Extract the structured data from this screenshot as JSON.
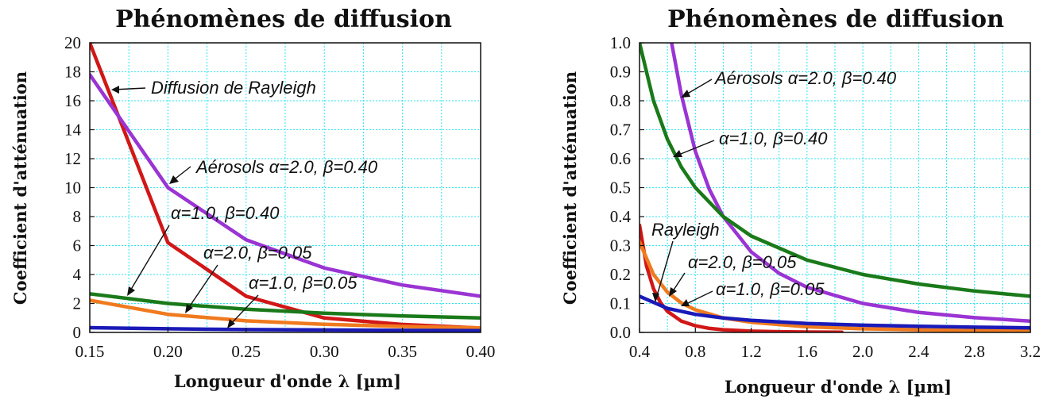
{
  "chart_data": [
    {
      "type": "line",
      "title": "Phénomènes de diffusion",
      "xlabel": "Longueur d'onde λ [µm]",
      "ylabel": "Coefficient d'atténuation",
      "xlim": [
        0.15,
        0.4
      ],
      "ylim": [
        0,
        20
      ],
      "xticks": [
        0.15,
        0.2,
        0.25,
        0.3,
        0.35,
        0.4
      ],
      "xtick_labels": [
        "0.15",
        "0.20",
        "0.25",
        "0.30",
        "0.35",
        "0.40"
      ],
      "yticks": [
        0,
        2,
        4,
        6,
        8,
        10,
        12,
        14,
        16,
        18,
        20
      ],
      "ytick_labels": [
        "0",
        "2",
        "4",
        "6",
        "8",
        "10",
        "12",
        "14",
        "16",
        "18",
        "20"
      ],
      "grid": true,
      "series": [
        {
          "name": "Diffusion de Rayleigh",
          "color": "#d11717",
          "x": [
            0.15,
            0.2,
            0.25,
            0.3,
            0.35,
            0.4
          ],
          "y": [
            20.0,
            6.2,
            2.5,
            1.0,
            0.55,
            0.3
          ]
        },
        {
          "name": "Aérosols α=2.0, β=0.40",
          "color": "#9a34d3",
          "x": [
            0.15,
            0.2,
            0.25,
            0.3,
            0.35,
            0.4
          ],
          "y": [
            17.8,
            10.0,
            6.4,
            4.45,
            3.27,
            2.5
          ]
        },
        {
          "name": "α=1.0, β=0.40",
          "color": "#1a7a1a",
          "x": [
            0.15,
            0.2,
            0.25,
            0.3,
            0.35,
            0.4
          ],
          "y": [
            2.67,
            2.0,
            1.6,
            1.33,
            1.14,
            1.0
          ]
        },
        {
          "name": "α=2.0, β=0.05",
          "color": "#f07a1e",
          "x": [
            0.15,
            0.2,
            0.25,
            0.3,
            0.35,
            0.4
          ],
          "y": [
            2.22,
            1.25,
            0.8,
            0.56,
            0.41,
            0.31
          ]
        },
        {
          "name": "α=1.0, β=0.05",
          "color": "#1a1ab8",
          "x": [
            0.15,
            0.2,
            0.25,
            0.3,
            0.35,
            0.4
          ],
          "y": [
            0.33,
            0.25,
            0.2,
            0.17,
            0.14,
            0.125
          ]
        }
      ],
      "annotations": [
        "Diffusion de Rayleigh",
        "Aérosols α=2.0, β=0.40",
        "α=1.0, β=0.40",
        "α=2.0, β=0.05",
        "α=1.0, β=0.05"
      ]
    },
    {
      "type": "line",
      "title": "Phénomènes de diffusion",
      "xlabel": "Longueur d'onde λ [µm]",
      "ylabel": "Coefficient d'atténuation",
      "xlim": [
        0.4,
        3.2
      ],
      "ylim": [
        0,
        1.0
      ],
      "xticks": [
        0.4,
        0.8,
        1.2,
        1.6,
        2.0,
        2.4,
        2.8,
        3.2
      ],
      "xtick_labels": [
        "0.4",
        "0.8",
        "1.2",
        "1.6",
        "2.0",
        "2.4",
        "2.8",
        "3.2"
      ],
      "yticks": [
        0,
        0.1,
        0.2,
        0.3,
        0.4,
        0.5,
        0.6,
        0.7,
        0.8,
        0.9,
        1.0
      ],
      "ytick_labels": [
        "0.0",
        "0.1",
        "0.2",
        "0.3",
        "0.4",
        "0.5",
        "0.6",
        "0.7",
        "0.8",
        "0.9",
        "1.0"
      ],
      "grid": true,
      "series": [
        {
          "name": "Rayleigh",
          "color": "#d11717",
          "x": [
            0.4,
            0.45,
            0.5,
            0.55,
            0.6,
            0.7,
            0.8,
            0.9,
            1.0,
            1.2,
            1.4,
            1.6,
            1.85
          ],
          "y": [
            0.37,
            0.23,
            0.151,
            0.103,
            0.073,
            0.039,
            0.023,
            0.014,
            0.0094,
            0.0045,
            0.0024,
            0.0014,
            0.0008
          ]
        },
        {
          "name": "Aérosols α=2.0, β=0.40",
          "color": "#9a34d3",
          "x": [
            0.63,
            0.7,
            0.8,
            0.9,
            1.0,
            1.2,
            1.4,
            1.6,
            2.0,
            2.4,
            2.8,
            3.2
          ],
          "y": [
            1.0,
            0.82,
            0.625,
            0.494,
            0.4,
            0.278,
            0.204,
            0.156,
            0.1,
            0.069,
            0.051,
            0.039
          ]
        },
        {
          "name": "α=1.0, β=0.40",
          "color": "#1a7a1a",
          "x": [
            0.4,
            0.5,
            0.6,
            0.7,
            0.8,
            1.0,
            1.2,
            1.6,
            2.0,
            2.4,
            2.8,
            3.2
          ],
          "y": [
            1.0,
            0.8,
            0.667,
            0.571,
            0.5,
            0.4,
            0.333,
            0.25,
            0.2,
            0.167,
            0.143,
            0.125
          ]
        },
        {
          "name": "α=2.0, β=0.05",
          "color": "#f07a1e",
          "x": [
            0.4,
            0.5,
            0.6,
            0.7,
            0.8,
            1.0,
            1.2,
            1.6,
            2.0,
            2.4,
            2.8,
            3.2
          ],
          "y": [
            0.3125,
            0.2,
            0.139,
            0.102,
            0.078,
            0.05,
            0.035,
            0.0195,
            0.0125,
            0.0087,
            0.0064,
            0.0049
          ]
        },
        {
          "name": "α=1.0, β=0.05",
          "color": "#1a1ab8",
          "x": [
            0.4,
            0.6,
            0.8,
            1.0,
            1.2,
            1.6,
            2.0,
            2.4,
            2.8,
            3.2
          ],
          "y": [
            0.125,
            0.083,
            0.0625,
            0.05,
            0.042,
            0.031,
            0.025,
            0.021,
            0.018,
            0.016
          ]
        }
      ],
      "annotations": [
        "Aérosols α=2.0, β=0.40",
        "α=1.0, β=0.40",
        "Rayleigh",
        "α=2.0, β=0.05",
        "α=1.0, β=0.05"
      ]
    }
  ]
}
